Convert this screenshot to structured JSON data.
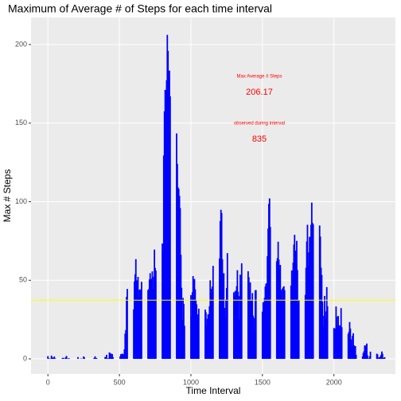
{
  "chart_data": {
    "type": "bar",
    "title": "Maximum of Average # of Steps for each time interval",
    "x_label": "Time Interval",
    "y_label": "Max # Steps",
    "annotations": [
      "Max Average # Steps",
      "206.17",
      "observed during interval",
      "835"
    ],
    "color": "#0000ff",
    "hline": 37.38,
    "hline_color": "#ffff00",
    "grid": true,
    "xlim": [
      -118,
      2430
    ],
    "ylim": [
      -9.6,
      217.2
    ],
    "xticks": [
      0,
      500,
      1000,
      1500,
      2000
    ],
    "yticks": [
      0,
      50,
      100,
      150,
      200
    ],
    "x": [
      0,
      5,
      10,
      15,
      20,
      25,
      30,
      35,
      40,
      45,
      50,
      55,
      100,
      105,
      110,
      115,
      120,
      125,
      130,
      135,
      140,
      145,
      150,
      155,
      200,
      205,
      210,
      215,
      220,
      225,
      230,
      235,
      240,
      245,
      250,
      255,
      300,
      305,
      310,
      315,
      320,
      325,
      330,
      335,
      340,
      345,
      350,
      355,
      400,
      405,
      410,
      415,
      420,
      425,
      430,
      435,
      440,
      445,
      450,
      455,
      500,
      505,
      510,
      515,
      520,
      525,
      530,
      535,
      540,
      545,
      550,
      555,
      600,
      605,
      610,
      615,
      620,
      625,
      630,
      635,
      640,
      645,
      650,
      655,
      700,
      705,
      710,
      715,
      720,
      725,
      730,
      735,
      740,
      745,
      750,
      755,
      800,
      805,
      810,
      815,
      820,
      825,
      830,
      835,
      840,
      845,
      850,
      855,
      900,
      905,
      910,
      915,
      920,
      925,
      930,
      935,
      940,
      945,
      950,
      955,
      1000,
      1005,
      1010,
      1015,
      1020,
      1025,
      1030,
      1035,
      1040,
      1045,
      1050,
      1055,
      1100,
      1105,
      1110,
      1115,
      1120,
      1125,
      1130,
      1135,
      1140,
      1145,
      1150,
      1155,
      1200,
      1205,
      1210,
      1215,
      1220,
      1225,
      1230,
      1235,
      1240,
      1245,
      1250,
      1255,
      1300,
      1305,
      1310,
      1315,
      1320,
      1325,
      1330,
      1335,
      1340,
      1345,
      1350,
      1355,
      1400,
      1405,
      1410,
      1415,
      1420,
      1425,
      1430,
      1435,
      1440,
      1445,
      1450,
      1455,
      1500,
      1505,
      1510,
      1515,
      1520,
      1525,
      1530,
      1535,
      1540,
      1545,
      1550,
      1555,
      1600,
      1605,
      1610,
      1615,
      1620,
      1625,
      1630,
      1635,
      1640,
      1645,
      1650,
      1655,
      1700,
      1705,
      1710,
      1715,
      1720,
      1725,
      1730,
      1735,
      1740,
      1745,
      1750,
      1755,
      1800,
      1805,
      1810,
      1815,
      1820,
      1825,
      1830,
      1835,
      1840,
      1845,
      1850,
      1855,
      1900,
      1905,
      1910,
      1915,
      1920,
      1925,
      1930,
      1935,
      1940,
      1945,
      1950,
      1955,
      2000,
      2005,
      2010,
      2015,
      2020,
      2025,
      2030,
      2035,
      2040,
      2045,
      2050,
      2055,
      2100,
      2105,
      2110,
      2115,
      2120,
      2125,
      2130,
      2135,
      2140,
      2145,
      2150,
      2155,
      2200,
      2205,
      2210,
      2215,
      2220,
      2225,
      2230,
      2235,
      2240,
      2245,
      2250,
      2255,
      2300,
      2305,
      2310,
      2315,
      2320,
      2325,
      2330,
      2335,
      2340,
      2345,
      2350,
      2355
    ],
    "values": [
      1.72,
      0.34,
      0.13,
      0.15,
      0.08,
      2.09,
      0.53,
      0.87,
      0,
      1.47,
      0.3,
      0.13,
      0.32,
      0.68,
      0.15,
      0.34,
      0,
      1.11,
      1.83,
      0.17,
      0.17,
      0.38,
      0.26,
      0,
      0,
      0,
      1.13,
      0,
      0,
      0.13,
      0,
      0.23,
      0,
      0,
      1.55,
      0.94,
      0,
      0,
      0,
      0,
      0.21,
      0.62,
      1.62,
      0.58,
      0.49,
      0.08,
      0,
      0,
      1.19,
      0.94,
      2.57,
      0,
      0.34,
      0.36,
      4.11,
      0.66,
      3.49,
      0.83,
      3.11,
      1.11,
      0,
      1.57,
      3,
      2.25,
      3.32,
      2.96,
      2.09,
      6.06,
      16.02,
      18.34,
      39.45,
      44.49,
      31.49,
      49.26,
      53.77,
      63.45,
      49.96,
      47.08,
      52.15,
      39.34,
      44.02,
      44.17,
      37.36,
      49.04,
      43.81,
      44.38,
      50.51,
      54.51,
      49.92,
      50.98,
      55.68,
      44.32,
      52.26,
      69.55,
      57.85,
      56.15,
      73.38,
      68.21,
      129.43,
      157.53,
      171.15,
      155.4,
      177.3,
      206.17,
      195.92,
      179.57,
      183.4,
      167.02,
      143.45,
      124.04,
      109.11,
      108.11,
      103.72,
      95.96,
      66.21,
      45.23,
      24.79,
      38.75,
      34.98,
      21.06,
      40.57,
      26.98,
      42.42,
      52.66,
      38.92,
      50.79,
      44.28,
      37.42,
      34.7,
      28.34,
      25.09,
      31.94,
      31.36,
      29.68,
      21.32,
      25.55,
      28.38,
      26.47,
      33.43,
      49.98,
      42.04,
      44.6,
      46.04,
      59.19,
      63.87,
      87.7,
      94.85,
      92.77,
      63.4,
      50.17,
      54.47,
      32.42,
      26.53,
      37.74,
      45.06,
      67.28,
      42.34,
      39.89,
      43.26,
      40.98,
      46.25,
      56.43,
      42.75,
      25.13,
      39.96,
      53.55,
      47.32,
      60.81,
      55.75,
      51.96,
      43.58,
      48.7,
      35.47,
      37.55,
      41.85,
      27.51,
      17.11,
      26.08,
      43.62,
      43.77,
      30.02,
      36.08,
      35.49,
      38.85,
      45.96,
      47.75,
      48.13,
      65.32,
      82.91,
      98.66,
      102.11,
      83.96,
      62.13,
      64.13,
      74.55,
      63.17,
      56.91,
      59.77,
      43.87,
      38.57,
      44.66,
      45.45,
      46.21,
      43.68,
      46.62,
      56.3,
      50.72,
      61.23,
      72.72,
      78.94,
      68.94,
      59.66,
      75.09,
      56.51,
      34.77,
      37.45,
      40.68,
      58.02,
      74.7,
      85.32,
      59.26,
      67.77,
      77.7,
      74.25,
      85.34,
      99.45,
      86.58,
      85.6,
      84.87,
      77.83,
      58.04,
      53.36,
      36.32,
      20.72,
      27.4,
      40.02,
      30.21,
      25.55,
      45.66,
      33.53,
      19.62,
      19.02,
      19.34,
      33.34,
      26.81,
      21.17,
      27.3,
      21.34,
      19.55,
      21.32,
      32.3,
      20.15,
      15.94,
      17.23,
      23.45,
      19.25,
      12.45,
      8.02,
      14.66,
      16.3,
      8.68,
      7.79,
      8.13,
      2.62,
      1.45,
      3.68,
      4.81,
      8.51,
      7.08,
      8.7,
      9.75,
      2.21,
      0.32,
      0.11,
      1.6,
      4.6,
      3.3,
      2.85,
      0,
      0.83,
      0.96,
      1.58,
      2.6,
      4.7,
      3.3,
      0.64,
      0.23,
      1.08
    ]
  }
}
